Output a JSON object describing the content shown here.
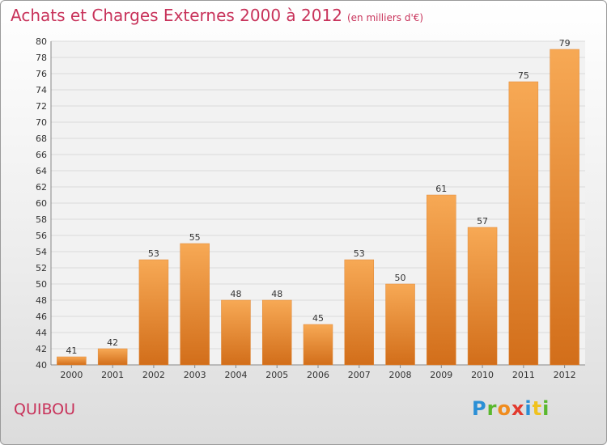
{
  "header": {
    "title": "Achats et Charges Externes 2000 à 2012",
    "subtitle": "(en milliers d'€)"
  },
  "commune": "QUIBOU",
  "brand": {
    "letters": [
      "P",
      "r",
      "o",
      "x",
      "i",
      "t",
      "i"
    ],
    "colors": [
      "#2a8fd6",
      "#5ab82e",
      "#f08c1e",
      "#e23a2e",
      "#2a8fd6",
      "#f0c21e",
      "#5ab82e"
    ]
  },
  "colors": {
    "bar_light": "#f7a955",
    "bar_dark": "#d26e1a",
    "title": "#c8325a"
  },
  "chart_data": {
    "type": "bar",
    "title": "Achats et Charges Externes 2000 à 2012",
    "categories": [
      "2000",
      "2001",
      "2002",
      "2003",
      "2004",
      "2005",
      "2006",
      "2007",
      "2008",
      "2009",
      "2010",
      "2011",
      "2012"
    ],
    "values": [
      41,
      42,
      53,
      55,
      48,
      48,
      45,
      53,
      50,
      61,
      57,
      75,
      79
    ],
    "ylim": [
      40,
      80
    ],
    "yticks": [
      40,
      42,
      44,
      46,
      48,
      50,
      52,
      54,
      56,
      58,
      60,
      62,
      64,
      66,
      68,
      70,
      72,
      74,
      76,
      78,
      80
    ],
    "grid": true
  }
}
